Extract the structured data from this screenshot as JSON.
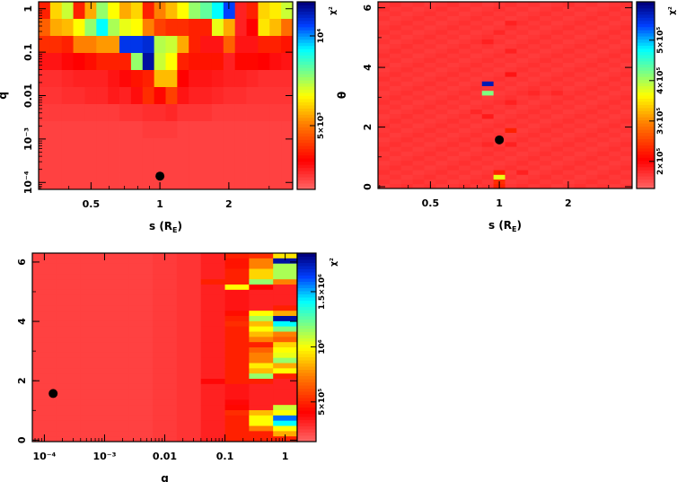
{
  "chart_data": [
    {
      "type": "heatmap",
      "title": "",
      "xlabel": "s (R_E)",
      "ylabel": "q",
      "colorbar_label": "χ²",
      "x_scale": "log",
      "y_scale": "log",
      "xlim_log10": [
        -0.53,
        0.58
      ],
      "ylim_log10": [
        -4.16,
        0.16
      ],
      "x_ticks": [
        {
          "value": 0.5,
          "label": "0.5"
        },
        {
          "value": 1,
          "label": "1"
        },
        {
          "value": 2,
          "label": "2"
        }
      ],
      "y_ticks": [
        {
          "value": 1,
          "label": "1"
        },
        {
          "value": 0.1,
          "label": "0.1"
        },
        {
          "value": 0.01,
          "label": "0.01"
        },
        {
          "value": 0.001,
          "label": "10⁻³"
        },
        {
          "value": 0.0001,
          "label": "10⁻⁴"
        }
      ],
      "colorbar_range": [
        1450,
        11900
      ],
      "colorbar_ticks": [
        {
          "value": 5000,
          "label": "5×10³"
        },
        {
          "value": 10000,
          "label": "10⁴"
        }
      ],
      "marker": {
        "x": 1,
        "y": 0.00014
      },
      "grid_note": "cells are normalized χ² color levels (0 = low, 1 = high), rows listed top (high q) to bottom",
      "cells": [
        [
          0.2,
          0.45,
          0.55,
          0.2,
          0.4,
          0.6,
          0.5,
          0.4,
          0.45,
          0.2,
          0.35,
          0.42,
          0.5,
          0.6,
          0.65,
          0.75,
          0.88,
          0.1,
          0.2,
          0.45,
          0.48,
          0.55
        ],
        [
          0.3,
          0.4,
          0.42,
          0.5,
          0.6,
          0.75,
          0.58,
          0.52,
          0.5,
          0.35,
          0.25,
          0.22,
          0.22,
          0.2,
          0.2,
          0.52,
          0.4,
          0.1,
          0.15,
          0.47,
          0.42,
          0.32
        ],
        [
          0.22,
          0.22,
          0.2,
          0.35,
          0.35,
          0.38,
          0.38,
          0.9,
          0.9,
          0.92,
          0.57,
          0.55,
          0.4,
          0.2,
          0.12,
          0.12,
          0.3,
          0.12,
          0.12,
          0.2,
          0.2,
          0.18
        ],
        [
          0.12,
          0.12,
          0.14,
          0.15,
          0.17,
          0.2,
          0.2,
          0.2,
          0.6,
          0.97,
          0.55,
          0.5,
          0.2,
          0.18,
          0.18,
          0.18,
          0.1,
          0.16,
          0.16,
          0.15,
          0.13,
          0.12
        ],
        [
          0.08,
          0.08,
          0.09,
          0.1,
          0.1,
          0.1,
          0.12,
          0.14,
          0.18,
          0.2,
          0.42,
          0.42,
          0.15,
          0.12,
          0.12,
          0.11,
          0.1,
          0.1,
          0.09,
          0.08,
          0.08,
          0.08
        ],
        [
          0.07,
          0.07,
          0.08,
          0.08,
          0.09,
          0.09,
          0.11,
          0.1,
          0.13,
          0.22,
          0.16,
          0.25,
          0.12,
          0.1,
          0.1,
          0.09,
          0.08,
          0.08,
          0.07,
          0.07,
          0.07,
          0.07
        ],
        [
          0.06,
          0.06,
          0.06,
          0.06,
          0.06,
          0.06,
          0.06,
          0.07,
          0.07,
          0.08,
          0.08,
          0.09,
          0.07,
          0.07,
          0.07,
          0.06,
          0.06,
          0.06,
          0.06,
          0.06,
          0.06,
          0.06
        ],
        [
          0.05,
          0.05,
          0.05,
          0.05,
          0.05,
          0.05,
          0.05,
          0.05,
          0.05,
          0.06,
          0.06,
          0.06,
          0.05,
          0.05,
          0.05,
          0.05,
          0.05,
          0.05,
          0.05,
          0.05,
          0.05,
          0.05
        ],
        [
          0.05,
          0.05,
          0.05,
          0.05,
          0.05,
          0.05,
          0.05,
          0.05,
          0.05,
          0.05,
          0.05,
          0.05,
          0.05,
          0.05,
          0.05,
          0.05,
          0.05,
          0.05,
          0.05,
          0.05,
          0.05,
          0.05
        ],
        [
          0.05,
          0.05,
          0.05,
          0.05,
          0.05,
          0.05,
          0.05,
          0.05,
          0.05,
          0.05,
          0.05,
          0.05,
          0.05,
          0.05,
          0.05,
          0.05,
          0.05,
          0.05,
          0.05,
          0.05,
          0.05,
          0.05
        ],
        [
          0.05,
          0.05,
          0.05,
          0.05,
          0.05,
          0.05,
          0.05,
          0.05,
          0.05,
          0.05,
          0.05,
          0.05,
          0.05,
          0.05,
          0.05,
          0.05,
          0.05,
          0.05,
          0.05,
          0.05,
          0.05,
          0.05
        ]
      ]
    },
    {
      "type": "heatmap",
      "title": "",
      "xlabel": "s (R_E)",
      "ylabel": "θ",
      "colorbar_label": "χ²",
      "x_scale": "log",
      "y_scale": "linear",
      "xlim_log10": [
        -0.53,
        0.58
      ],
      "ylim": [
        -0.06,
        6.2
      ],
      "x_ticks": [
        {
          "value": 0.5,
          "label": "0.5"
        },
        {
          "value": 1,
          "label": "1"
        },
        {
          "value": 2,
          "label": "2"
        }
      ],
      "y_ticks": [
        {
          "value": 0,
          "label": "0"
        },
        {
          "value": 2,
          "label": "2"
        },
        {
          "value": 4,
          "label": "4"
        },
        {
          "value": 6,
          "label": "6"
        }
      ],
      "colorbar_range": [
        133000,
        595000
      ],
      "colorbar_ticks": [
        {
          "value": 200000,
          "label": "2×10⁵"
        },
        {
          "value": 300000,
          "label": "3×10⁵"
        },
        {
          "value": 400000,
          "label": "4×10⁵"
        },
        {
          "value": 500000,
          "label": "5×10⁵"
        }
      ],
      "marker": {
        "x": 1,
        "y": 1.57
      },
      "grid": {
        "cols": 22,
        "rows": 40,
        "background_level": 0.06
      },
      "highlights": [
        {
          "col": 9,
          "row": 22,
          "level": 0.95
        },
        {
          "col": 9,
          "row": 20,
          "level": 0.62
        },
        {
          "col": 10,
          "row": 0,
          "level": 0.2
        },
        {
          "col": 10,
          "row": 1,
          "level": 0.22
        },
        {
          "col": 10,
          "row": 2,
          "level": 0.52
        },
        {
          "col": 10,
          "row": 3,
          "level": 0.2
        },
        {
          "col": 11,
          "row": 12,
          "level": 0.2
        },
        {
          "col": 9,
          "row": 15,
          "level": 0.11
        },
        {
          "col": 11,
          "row": 18,
          "level": 0.1
        },
        {
          "col": 11,
          "row": 24,
          "level": 0.12
        },
        {
          "col": 9,
          "row": 31,
          "level": 0.1
        },
        {
          "col": 11,
          "row": 35,
          "level": 0.1
        },
        {
          "col": 10,
          "row": 33,
          "level": 0.09
        },
        {
          "col": 8,
          "row": 16,
          "level": 0.09
        },
        {
          "col": 13,
          "row": 20,
          "level": 0.09
        },
        {
          "col": 15,
          "row": 20,
          "level": 0.09
        },
        {
          "col": 12,
          "row": 3,
          "level": 0.1
        },
        {
          "col": 11,
          "row": 9,
          "level": 0.1
        },
        {
          "col": 9,
          "row": 9,
          "level": 0.09
        },
        {
          "col": 11,
          "row": 29,
          "level": 0.1
        }
      ]
    },
    {
      "type": "heatmap",
      "title": "",
      "xlabel": "q",
      "ylabel": "θ",
      "colorbar_label": "χ²",
      "x_scale": "log",
      "y_scale": "linear",
      "xlim_log10": [
        -4.2,
        0.2
      ],
      "ylim": [
        -0.05,
        6.3
      ],
      "x_ticks": [
        {
          "value": 0.0001,
          "label": "10⁻⁴"
        },
        {
          "value": 0.001,
          "label": "10⁻³"
        },
        {
          "value": 0.01,
          "label": "0.01"
        },
        {
          "value": 0.1,
          "label": "0.1"
        },
        {
          "value": 1,
          "label": "1"
        }
      ],
      "y_ticks": [
        {
          "value": 0,
          "label": "0"
        },
        {
          "value": 2,
          "label": "2"
        },
        {
          "value": 4,
          "label": "4"
        },
        {
          "value": 6,
          "label": "6"
        }
      ],
      "colorbar_range": [
        140000,
        1850000
      ],
      "colorbar_ticks": [
        {
          "value": 500000,
          "label": "5×10⁵"
        },
        {
          "value": 1000000,
          "label": "10⁶"
        },
        {
          "value": 1500000,
          "label": "1.5×10⁶"
        }
      ],
      "marker": {
        "x": 0.00014,
        "y": 1.57
      },
      "grid": {
        "col_edges_log10": [
          -4.2,
          -3.8,
          -3.4,
          -3.0,
          -2.6,
          -2.2,
          -1.8,
          -1.4,
          -1.0,
          -0.6,
          -0.2,
          0.2
        ],
        "rows": 36
      },
      "uniform_col_levels": [
        0.05,
        0.05,
        0.05,
        0.05,
        0.05,
        0.06,
        0.07,
        0.1
      ],
      "col7_overrides": [
        {
          "row": 5,
          "level": 0.2
        },
        {
          "row": 24,
          "level": 0.14
        }
      ],
      "col8_levels_top_to_bottom": [
        0.2,
        0.18,
        0.18,
        0.2,
        0.2,
        0.2,
        0.5,
        0.12,
        0.12,
        0.12,
        0.12,
        0.17,
        0.2,
        0.22,
        0.2,
        0.2,
        0.2,
        0.2,
        0.2,
        0.2,
        0.2,
        0.2,
        0.2,
        0.2,
        0.2,
        0.12,
        0.12,
        0.12,
        0.14,
        0.16,
        0.22,
        0.2,
        0.2,
        0.2,
        0.2,
        0.2
      ],
      "col9_levels_top_to_bottom": [
        0.22,
        0.35,
        0.35,
        0.45,
        0.45,
        0.6,
        0.15,
        0.1,
        0.1,
        0.1,
        0.1,
        0.5,
        0.58,
        0.42,
        0.5,
        0.42,
        0.35,
        0.2,
        0.3,
        0.35,
        0.35,
        0.48,
        0.42,
        0.6,
        0.2,
        0.1,
        0.1,
        0.1,
        0.1,
        0.1,
        0.42,
        0.5,
        0.5,
        0.35,
        0.2,
        0.2
      ],
      "col10_levels_top_to_bottom": [
        0.47,
        0.97,
        0.58,
        0.58,
        0.58,
        0.35,
        0.1,
        0.1,
        0.1,
        0.1,
        0.2,
        0.4,
        0.97,
        0.75,
        0.62,
        0.35,
        0.3,
        0.45,
        0.5,
        0.52,
        0.6,
        0.4,
        0.5,
        0.2,
        0.1,
        0.1,
        0.1,
        0.1,
        0.1,
        0.55,
        0.5,
        0.85,
        0.75,
        0.5,
        0.4,
        0.2
      ]
    }
  ],
  "colormap": [
    "#ff6262",
    "#ff0000",
    "#ff8000",
    "#ffff00",
    "#80ff80",
    "#00ffff",
    "#0040ff",
    "#000080"
  ]
}
